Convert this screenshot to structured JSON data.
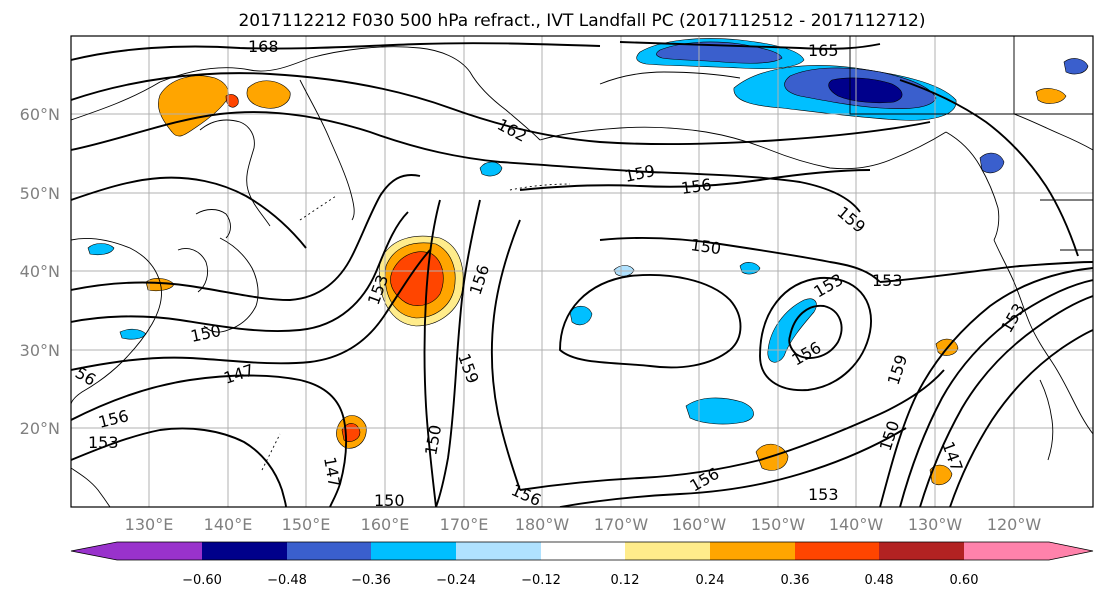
{
  "title": "2017112212 F030 500 hPa refract., IVT Landfall PC (2017112512 - 2017112712)",
  "lat_labels": [
    "60°N",
    "50°N",
    "40°N",
    "30°N",
    "20°N"
  ],
  "lon_labels": [
    "130°E",
    "140°E",
    "150°E",
    "160°E",
    "170°E",
    "180°W",
    "170°W",
    "160°W",
    "150°W",
    "140°W",
    "130°W",
    "120°W"
  ],
  "contour_labels": [
    "168",
    "165",
    "162",
    "159",
    "156",
    "159",
    "150",
    "153",
    "153",
    "156",
    "153",
    "150",
    "147",
    "156",
    "153",
    "156",
    "159",
    "150",
    "147",
    "156",
    "150",
    "156",
    "153",
    "159",
    "150",
    "147",
    "56",
    "153"
  ],
  "colorbar": {
    "labels": [
      "−0.60",
      "−0.48",
      "−0.36",
      "−0.24",
      "−0.12",
      "0.12",
      "0.24",
      "0.36",
      "0.48",
      "0.60"
    ],
    "colors": [
      "#9932cc",
      "#00008b",
      "#3a5fcd",
      "#00bfff",
      "#b0e2ff",
      "#ffffff",
      "#ffec8b",
      "#ffa500",
      "#ff4500",
      "#b22222",
      "#ff82ab"
    ]
  }
}
